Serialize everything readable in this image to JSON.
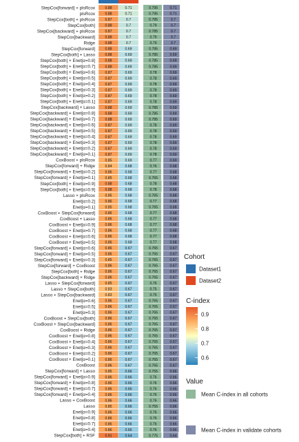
{
  "chart_data": {
    "type": "heatmap",
    "title": "",
    "columns": [
      "Dataset1",
      "Dataset2",
      "Mean C-index in all cohorts",
      "Mean C-index in validate cohorts"
    ],
    "column_colors": [
      "#2e6fae",
      "#e0491f",
      null,
      null
    ],
    "rows": [
      "StepCox[forward] + plsRcox",
      "plsRcox",
      "StepCox[both] + plsRcox",
      "StepCox[both]",
      "StepCox[backward] + plsRcox",
      "StepCox[backward]",
      "Ridge",
      "StepCox[forward]",
      "StepCox[both] + Lasso",
      "StepCox[both] + Enet[α=0.8]",
      "StepCox[both] + Enet[α=0.7]",
      "StepCox[both] + Enet[α=0.6]",
      "StepCox[both] + Enet[α=0.5]",
      "StepCox[both] + Enet[α=0.4]",
      "StepCox[both] + Enet[α=0.3]",
      "StepCox[both] + Enet[α=0.2]",
      "StepCox[both] + Enet[α=0.1]",
      "StepCox[backward] + Lasso",
      "StepCox[backward] + Enet[α=0.8]",
      "StepCox[backward] + Enet[α=0.7]",
      "StepCox[backward] + Enet[α=0.6]",
      "StepCox[backward] + Enet[α=0.5]",
      "StepCox[backward] + Enet[α=0.4]",
      "StepCox[backward] + Enet[α=0.3]",
      "StepCox[backward] + Enet[α=0.2]",
      "StepCox[backward] + Enet[α=0.1]",
      "CoxBoost + plsRcox",
      "StepCox[forward] + Ridge",
      "StepCox[forward] + Enet[α=0.2]",
      "StepCox[forward] + Enet[α=0.1]",
      "StepCox[both] + Enet[α=0.9]",
      "StepCox[both] + Enet[α=0.9]",
      "Lasso + plsRcox",
      "Enet[α=0.2]",
      "Enet[α=0.1]",
      "CoxBoost + StepCox[forward]",
      "CoxBoost + Lasso",
      "CoxBoost + Enet[α=0.9]",
      "CoxBoost + Enet[α=0.7]",
      "CoxBoost + Enet[α=0.6]",
      "CoxBoost + Enet[α=0.5]",
      "StepCox[forward] + Enet[α=0.6]",
      "StepCox[forward] + Enet[α=0.5]",
      "StepCox[forward] + Enet[α=0.3]",
      "StepCox[forward] + CoxBoost",
      "StepCox[both] + Ridge",
      "StepCox[backward] + Ridge",
      "Lasso + StepCox[forward]",
      "Lasso + StepCox[both]",
      "Lasso + StepCox[backward]",
      "Enet[α=0.6]",
      "Enet[α=0.5]",
      "Enet[α=0.3]",
      "CoxBoost + StepCox[both]",
      "CoxBoost + StepCox[backward]",
      "CoxBoost + Ridge",
      "CoxBoost + Enet[α=0.8]",
      "CoxBoost + Enet[α=0.4]",
      "CoxBoost + Enet[α=0.3]",
      "CoxBoost + Enet[α=0.2]",
      "CoxBoost + Enet[α=0.1]",
      "CoxBoost",
      "StepCox[forward] + Lasso",
      "StepCox[forward] + Enet[α=0.9]",
      "StepCox[forward] + Enet[α=0.8]",
      "StepCox[forward] + Enet[α=0.7]",
      "StepCox[forward] + Enet[α=0.4]",
      "Lasso + CoxBoost",
      "Lasso",
      "Enet[α=0.9]",
      "Enet[α=0.8]",
      "Enet[α=0.7]",
      "Enet[α=0.4]",
      "StepCox[both] + RSF"
    ],
    "values": [
      [
        0.88,
        0.71,
        0.795,
        0.71
      ],
      [
        0.88,
        0.71,
        0.795,
        0.71
      ],
      [
        0.87,
        0.7,
        0.785,
        0.7
      ],
      [
        0.88,
        0.7,
        0.79,
        0.7
      ],
      [
        0.87,
        0.7,
        0.785,
        0.7
      ],
      [
        0.88,
        0.7,
        0.79,
        0.7
      ],
      [
        0.88,
        0.7,
        0.79,
        0.7
      ],
      [
        0.88,
        0.69,
        0.785,
        0.69
      ],
      [
        0.88,
        0.69,
        0.785,
        0.69
      ],
      [
        0.88,
        0.69,
        0.785,
        0.69
      ],
      [
        0.88,
        0.69,
        0.785,
        0.69
      ],
      [
        0.87,
        0.69,
        0.78,
        0.69
      ],
      [
        0.87,
        0.69,
        0.78,
        0.69
      ],
      [
        0.87,
        0.69,
        0.78,
        0.69
      ],
      [
        0.87,
        0.69,
        0.78,
        0.69
      ],
      [
        0.87,
        0.69,
        0.78,
        0.69
      ],
      [
        0.87,
        0.69,
        0.78,
        0.69
      ],
      [
        0.88,
        0.69,
        0.785,
        0.69
      ],
      [
        0.88,
        0.69,
        0.785,
        0.69
      ],
      [
        0.88,
        0.69,
        0.785,
        0.69
      ],
      [
        0.87,
        0.69,
        0.78,
        0.69
      ],
      [
        0.87,
        0.69,
        0.78,
        0.69
      ],
      [
        0.87,
        0.69,
        0.78,
        0.69
      ],
      [
        0.87,
        0.69,
        0.78,
        0.69
      ],
      [
        0.87,
        0.69,
        0.78,
        0.69
      ],
      [
        0.87,
        0.69,
        0.78,
        0.69
      ],
      [
        0.85,
        0.69,
        0.77,
        0.69
      ],
      [
        0.84,
        0.68,
        0.76,
        0.68
      ],
      [
        0.86,
        0.68,
        0.77,
        0.68
      ],
      [
        0.85,
        0.68,
        0.765,
        0.68
      ],
      [
        0.88,
        0.68,
        0.78,
        0.68
      ],
      [
        0.88,
        0.68,
        0.78,
        0.68
      ],
      [
        0.85,
        0.68,
        0.765,
        0.68
      ],
      [
        0.86,
        0.68,
        0.77,
        0.68
      ],
      [
        0.85,
        0.68,
        0.765,
        0.68
      ],
      [
        0.86,
        0.68,
        0.77,
        0.68
      ],
      [
        0.86,
        0.68,
        0.77,
        0.68
      ],
      [
        0.86,
        0.68,
        0.77,
        0.68
      ],
      [
        0.86,
        0.68,
        0.77,
        0.68
      ],
      [
        0.86,
        0.68,
        0.77,
        0.68
      ],
      [
        0.86,
        0.68,
        0.77,
        0.68
      ],
      [
        0.86,
        0.67,
        0.765,
        0.67
      ],
      [
        0.86,
        0.67,
        0.765,
        0.67
      ],
      [
        0.85,
        0.67,
        0.765,
        0.67
      ],
      [
        0.86,
        0.67,
        0.765,
        0.67
      ],
      [
        0.86,
        0.67,
        0.765,
        0.67
      ],
      [
        0.86,
        0.67,
        0.765,
        0.67
      ],
      [
        0.85,
        0.67,
        0.76,
        0.67
      ],
      [
        0.83,
        0.67,
        0.75,
        0.67
      ],
      [
        0.83,
        0.67,
        0.75,
        0.67
      ],
      [
        0.86,
        0.67,
        0.765,
        0.67
      ],
      [
        0.86,
        0.67,
        0.765,
        0.67
      ],
      [
        0.86,
        0.67,
        0.765,
        0.67
      ],
      [
        0.86,
        0.67,
        0.765,
        0.67
      ],
      [
        0.86,
        0.67,
        0.765,
        0.67
      ],
      [
        0.86,
        0.67,
        0.765,
        0.67
      ],
      [
        0.86,
        0.67,
        0.765,
        0.67
      ],
      [
        0.86,
        0.67,
        0.765,
        0.67
      ],
      [
        0.86,
        0.67,
        0.765,
        0.67
      ],
      [
        0.86,
        0.67,
        0.765,
        0.67
      ],
      [
        0.86,
        0.67,
        0.765,
        0.67
      ],
      [
        0.86,
        0.67,
        0.765,
        0.67
      ],
      [
        0.85,
        0.66,
        0.755,
        0.66
      ],
      [
        0.86,
        0.66,
        0.76,
        0.66
      ],
      [
        0.86,
        0.66,
        0.76,
        0.66
      ],
      [
        0.86,
        0.66,
        0.76,
        0.66
      ],
      [
        0.86,
        0.66,
        0.76,
        0.66
      ],
      [
        0.86,
        0.66,
        0.76,
        0.66
      ],
      [
        0.85,
        0.66,
        0.755,
        0.66
      ],
      [
        0.86,
        0.66,
        0.76,
        0.66
      ],
      [
        0.86,
        0.66,
        0.76,
        0.66
      ],
      [
        0.86,
        0.66,
        0.76,
        0.66
      ],
      [
        0.86,
        0.66,
        0.76,
        0.66
      ],
      [
        0.91,
        0.64,
        0.775,
        0.64
      ]
    ],
    "color_scale": {
      "min": 0.55,
      "max": 0.95,
      "stops": [
        {
          "value": 0.55,
          "color": "#2b83ba"
        },
        {
          "value": 0.68,
          "color": "#abd9e9"
        },
        {
          "value": 0.75,
          "color": "#ffffbf"
        },
        {
          "value": 0.85,
          "color": "#fdae61"
        },
        {
          "value": 0.95,
          "color": "#e85a2a"
        }
      ]
    },
    "mean_bar_colors": {
      "all": "#8fb99a",
      "validate": "#8089a8"
    },
    "legend": {
      "cohort_title": "Cohort",
      "cohort_items": [
        {
          "label": "Dataset1",
          "color": "#2e6fae"
        },
        {
          "label": "Dataset2",
          "color": "#e0491f"
        }
      ],
      "cindex_title": "C-index",
      "cindex_ticks": [
        "0.9",
        "0.8",
        "0.7",
        "0.6"
      ],
      "value_title": "Value",
      "value_items": [
        {
          "label": "Mean C-index in all cohorts",
          "color": "#8fb99a"
        },
        {
          "label": "Mean C-index in validate cohorts",
          "color": "#8089a8"
        }
      ]
    }
  }
}
